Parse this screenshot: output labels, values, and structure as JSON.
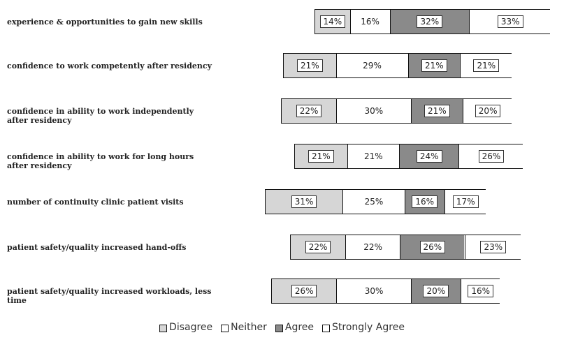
{
  "chart_data": {
    "type": "bar",
    "stacked": true,
    "categories": [
      "experience & opportunities to gain new skills",
      "confidence to work competently after residency",
      "confidence in ability to work independently after residency",
      "confidence in ability to work for long hours after residency",
      "number of continuity clinic patient visits",
      "patient safety/quality increased hand-offs",
      "patient safety/quality increased workloads, less  time"
    ],
    "series": [
      {
        "name": "Disagree",
        "values": [
          14,
          21,
          22,
          21,
          31,
          22,
          26
        ]
      },
      {
        "name": "Neither",
        "values": [
          16,
          29,
          30,
          21,
          25,
          22,
          30
        ]
      },
      {
        "name": "Agree",
        "values": [
          32,
          21,
          21,
          24,
          16,
          26,
          20
        ]
      },
      {
        "name": "Strongly Agree",
        "values": [
          33,
          21,
          20,
          26,
          17,
          23,
          16
        ]
      }
    ],
    "labels": [
      [
        "14%",
        "16%",
        "32%",
        "33%"
      ],
      [
        "21%",
        "29%",
        "21%",
        "21%"
      ],
      [
        "22%",
        "30%",
        "21%",
        "20%"
      ],
      [
        "21%",
        "21%",
        "24%",
        "26%"
      ],
      [
        "31%",
        "25%",
        "16%",
        "17%"
      ],
      [
        "22%",
        "22%",
        "26%",
        "23%"
      ],
      [
        "26%",
        "30%",
        "20%",
        "16%"
      ]
    ],
    "legend": [
      "Disagree",
      "Neither",
      "Agree",
      "Strongly Agree"
    ],
    "colors": [
      "#d6d6d6",
      "#ffffff",
      "#8a8a8a",
      "#ffffff"
    ]
  }
}
